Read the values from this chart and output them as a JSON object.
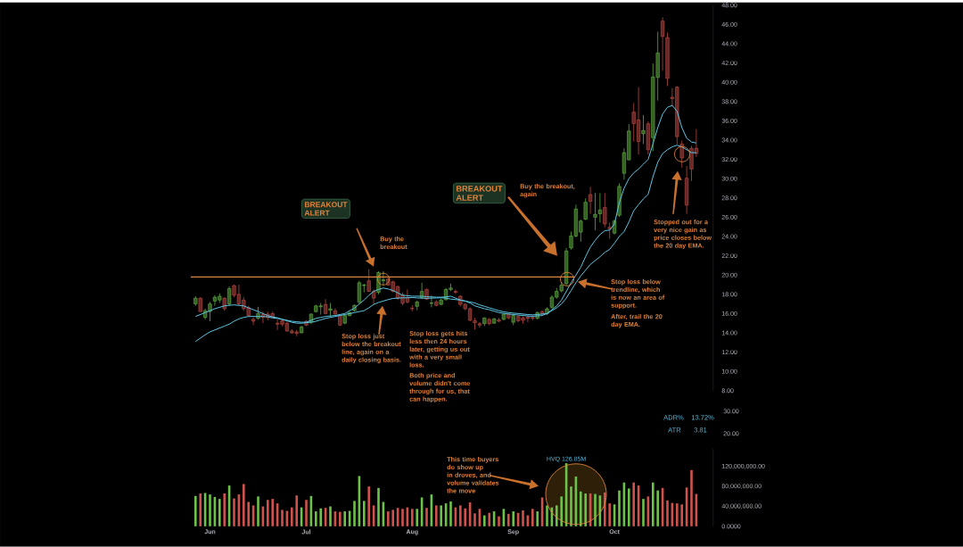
{
  "chart_data": [
    {
      "type": "candlestick",
      "tick_labels": "y",
      "ylim": [
        8,
        48
      ],
      "yticks": [
        {
          "value": 8,
          "label": "8.00"
        },
        {
          "value": 10,
          "label": "10.00"
        },
        {
          "value": 12,
          "label": "12.00"
        },
        {
          "value": 14,
          "label": "14.00"
        },
        {
          "value": 16,
          "label": "16.00"
        },
        {
          "value": 18,
          "label": "18.00"
        },
        {
          "value": 20,
          "label": "20.00"
        },
        {
          "value": 22,
          "label": "22.00"
        },
        {
          "value": 24,
          "label": "24.00"
        },
        {
          "value": 26,
          "label": "26.00"
        },
        {
          "value": 28,
          "label": "28.00"
        },
        {
          "value": 30,
          "label": "30.00"
        },
        {
          "value": 32,
          "label": "32.00"
        },
        {
          "value": 34,
          "label": "34.00"
        },
        {
          "value": 36,
          "label": "36.00"
        },
        {
          "value": 38,
          "label": "38.00"
        },
        {
          "value": 40,
          "label": "40.00"
        },
        {
          "value": 42,
          "label": "42.00"
        },
        {
          "value": 44,
          "label": "44.00"
        },
        {
          "value": 46,
          "label": "46.00"
        },
        {
          "value": 48,
          "label": "48.00"
        }
      ],
      "series": [
        {
          "type": "candlestick",
          "ohlc": [
            [
              17.0,
              17.8,
              16.8,
              17.6
            ],
            [
              17.6,
              17.7,
              16.2,
              16.2
            ],
            [
              15.6,
              16.5,
              15.4,
              16.3
            ],
            [
              16.2,
              17.2,
              15.2,
              17.0
            ],
            [
              17.3,
              17.9,
              16.8,
              17.7
            ],
            [
              17.4,
              18.1,
              17.1,
              17.8
            ],
            [
              17.6,
              17.7,
              16.3,
              16.5
            ],
            [
              17.0,
              18.8,
              16.8,
              18.6
            ],
            [
              18.9,
              19.0,
              17.7,
              17.9
            ],
            [
              18.0,
              19.0,
              16.8,
              17.0
            ],
            [
              17.4,
              17.7,
              16.3,
              16.5
            ],
            [
              16.6,
              16.8,
              15.7,
              15.8
            ],
            [
              15.4,
              15.6,
              14.8,
              15.2
            ],
            [
              15.5,
              16.7,
              15.4,
              16.0
            ],
            [
              15.9,
              16.2,
              15.0,
              15.6
            ],
            [
              15.95,
              16.2,
              15.3,
              15.6
            ],
            [
              16.0,
              16.2,
              15.6,
              15.6
            ],
            [
              15.0,
              15.4,
              14.3,
              14.9
            ],
            [
              15.25,
              15.4,
              14.7,
              14.9
            ],
            [
              15.0,
              15.2,
              14.1,
              14.2
            ],
            [
              14.2,
              14.4,
              13.9,
              14.0
            ],
            [
              14.1,
              14.3,
              13.65,
              13.95
            ],
            [
              14.0,
              14.75,
              13.95,
              14.6
            ],
            [
              15.2,
              15.3,
              14.7,
              14.8
            ],
            [
              15.1,
              16.0,
              14.9,
              15.95
            ],
            [
              16.2,
              16.9,
              16.1,
              16.8
            ],
            [
              16.7,
              17.1,
              15.9,
              16.8
            ],
            [
              16.95,
              17.5,
              15.9,
              16.0
            ],
            [
              16.35,
              17.1,
              15.7,
              16.5
            ],
            [
              16.3,
              16.55,
              15.9,
              15.95
            ],
            [
              15.8,
              15.9,
              14.7,
              14.8
            ],
            [
              15.0,
              15.9,
              14.9,
              15.8
            ],
            [
              15.8,
              16.2,
              15.7,
              16.1
            ],
            [
              16.3,
              16.95,
              16.2,
              16.85
            ],
            [
              17.2,
              19.4,
              17.0,
              19.2
            ],
            [
              18.9,
              19.1,
              18.2,
              18.95
            ],
            [
              19.4,
              20.6,
              18.3,
              18.3
            ],
            [
              18.3,
              18.5,
              16.95,
              17.6
            ],
            [
              18.2,
              20.4,
              18.0,
              20.25
            ],
            [
              19.4,
              20.4,
              18.95,
              19.5
            ],
            [
              19.6,
              19.7,
              18.9,
              18.95
            ],
            [
              19.3,
              19.4,
              18.2,
              18.3
            ],
            [
              18.8,
              18.9,
              17.4,
              17.6
            ],
            [
              17.95,
              18.2,
              16.85,
              17.05
            ],
            [
              17.65,
              18.5,
              17.05,
              17.2
            ],
            [
              16.55,
              16.85,
              16.25,
              16.5
            ],
            [
              16.75,
              17.35,
              16.35,
              17.2
            ],
            [
              17.65,
              19.2,
              17.55,
              18.3
            ],
            [
              18.5,
              18.6,
              17.4,
              17.5
            ],
            [
              17.05,
              17.9,
              16.65,
              17.1
            ],
            [
              17.2,
              17.4,
              16.75,
              16.85
            ],
            [
              16.95,
              17.55,
              16.85,
              17.4
            ],
            [
              17.45,
              18.65,
              17.35,
              18.5
            ],
            [
              18.5,
              19.1,
              18.35,
              18.65
            ],
            [
              18.3,
              18.5,
              18.05,
              18.2
            ],
            [
              17.8,
              17.9,
              16.75,
              16.95
            ],
            [
              16.95,
              17.1,
              16.35,
              16.5
            ],
            [
              16.5,
              16.65,
              15.2,
              15.3
            ],
            [
              15.25,
              15.55,
              14.35,
              15.05
            ],
            [
              14.95,
              15.1,
              14.55,
              14.8
            ],
            [
              14.95,
              15.6,
              14.7,
              15.55
            ],
            [
              15.4,
              15.55,
              14.8,
              14.95
            ],
            [
              15.0,
              15.55,
              14.95,
              15.45
            ],
            [
              15.35,
              15.55,
              15.1,
              15.2
            ],
            [
              15.4,
              16.0,
              15.3,
              15.95
            ],
            [
              15.95,
              16.0,
              15.4,
              15.55
            ],
            [
              15.1,
              16.0,
              14.8,
              15.8
            ],
            [
              15.7,
              15.85,
              15.1,
              15.25
            ],
            [
              15.55,
              15.7,
              14.95,
              15.3
            ],
            [
              15.65,
              15.8,
              15.1,
              15.5
            ],
            [
              15.6,
              15.85,
              15.3,
              15.5
            ],
            [
              15.5,
              16.2,
              15.4,
              16.1
            ],
            [
              16.2,
              16.35,
              15.85,
              16.0
            ],
            [
              16.0,
              16.65,
              15.85,
              16.5
            ],
            [
              16.65,
              17.9,
              16.5,
              17.7
            ],
            [
              17.7,
              18.65,
              17.55,
              18.3
            ],
            [
              18.35,
              19.25,
              18.2,
              18.95
            ],
            [
              19.1,
              22.8,
              18.95,
              22.5
            ],
            [
              22.8,
              24.5,
              22.65,
              24.05
            ],
            [
              24.05,
              27.3,
              23.9,
              26.85
            ],
            [
              24.45,
              25.75,
              23.45,
              25.6
            ],
            [
              25.8,
              27.95,
              25.7,
              27.55
            ],
            [
              28.35,
              29.15,
              26.35,
              27.65
            ],
            [
              26.0,
              28.5,
              24.65,
              26.3
            ],
            [
              26.35,
              28.5,
              25.45,
              26.75
            ],
            [
              27.0,
              28.5,
              24.95,
              25.3
            ],
            [
              24.95,
              25.45,
              23.75,
              24.8
            ],
            [
              24.35,
              25.75,
              24.2,
              25.6
            ],
            [
              26.2,
              29.5,
              26.05,
              29.2
            ],
            [
              30.55,
              33.15,
              29.9,
              32.7
            ],
            [
              31.95,
              35.65,
              31.9,
              34.95
            ],
            [
              36.9,
              37.85,
              33.85,
              35.7
            ],
            [
              36.1,
              39.5,
              32.5,
              33.85
            ],
            [
              34.65,
              36.6,
              33.6,
              35.0
            ],
            [
              35.7,
              35.95,
              32.5,
              33.0
            ],
            [
              34.25,
              41.95,
              32.85,
              40.55
            ],
            [
              40.5,
              45.25,
              38.1,
              43.05
            ],
            [
              46.35,
              46.75,
              41.2,
              44.75
            ],
            [
              44.65,
              45.15,
              39.6,
              40.4
            ],
            [
              38.45,
              39.4,
              37.5,
              38.3
            ],
            [
              39.5,
              39.6,
              33.55,
              34.35
            ],
            [
              33.6,
              33.95,
              31.15,
              32.15
            ],
            [
              30.05,
              31.3,
              26.35,
              27.25
            ],
            [
              33.15,
              33.4,
              29.75,
              31.0
            ],
            [
              33.15,
              35.15,
              32.25,
              32.6
            ]
          ],
          "colors": [
            "#6cc24a",
            "#d0524c",
            "#6cc24a",
            "#6cc24a",
            "#6cc24a",
            "#6cc24a",
            "#d0524c",
            "#6cc24a",
            "#d0524c",
            "#d0524c",
            "#d0524c",
            "#d0524c",
            "#d0524c",
            "#6cc24a",
            "#d0524c",
            "#d0524c",
            "#d0524c",
            "#d0524c",
            "#d0524c",
            "#d0524c",
            "#d0524c",
            "#d0524c",
            "#6cc24a",
            "#d0524c",
            "#6cc24a",
            "#6cc24a",
            "#6cc24a",
            "#d0524c",
            "#6cc24a",
            "#d0524c",
            "#d0524c",
            "#6cc24a",
            "#6cc24a",
            "#6cc24a",
            "#6cc24a",
            "#6cc24a",
            "#d0524c",
            "#d0524c",
            "#6cc24a",
            "#6cc24a",
            "#d0524c",
            "#d0524c",
            "#d0524c",
            "#d0524c",
            "#d0524c",
            "#d0524c",
            "#6cc24a",
            "#6cc24a",
            "#d0524c",
            "#6cc24a",
            "#d0524c",
            "#6cc24a",
            "#6cc24a",
            "#6cc24a",
            "#d0524c",
            "#d0524c",
            "#d0524c",
            "#d0524c",
            "#d0524c",
            "#d0524c",
            "#6cc24a",
            "#d0524c",
            "#6cc24a",
            "#d0524c",
            "#6cc24a",
            "#d0524c",
            "#6cc24a",
            "#d0524c",
            "#d0524c",
            "#d0524c",
            "#d0524c",
            "#6cc24a",
            "#d0524c",
            "#6cc24a",
            "#6cc24a",
            "#6cc24a",
            "#6cc24a",
            "#6cc24a",
            "#6cc24a",
            "#6cc24a",
            "#6cc24a",
            "#6cc24a",
            "#d0524c",
            "#6cc24a",
            "#6cc24a",
            "#d0524c",
            "#d0524c",
            "#6cc24a",
            "#6cc24a",
            "#6cc24a",
            "#6cc24a",
            "#d0524c",
            "#d0524c",
            "#6cc24a",
            "#d0524c",
            "#6cc24a",
            "#6cc24a",
            "#d0524c",
            "#d0524c",
            "#d0524c",
            "#d0524c",
            "#d0524c",
            "#d0524c",
            "#d0524c",
            "#d0524c"
          ]
        },
        {
          "type": "line",
          "color": "#5cc6e4",
          "values": [
            15.7,
            15.9,
            16.1,
            16.3,
            16.5,
            16.65,
            16.8,
            16.86,
            16.9,
            16.85,
            16.8,
            16.6,
            16.4,
            16.2,
            16.0,
            15.8,
            15.65,
            15.56,
            15.4,
            15.3,
            15.2,
            15.15,
            15.1,
            15.1,
            15.3,
            15.5,
            15.6,
            15.7,
            15.75,
            15.8,
            15.9,
            16.0,
            16.3,
            16.55,
            17.0,
            17.4,
            17.9,
            18.3,
            18.5,
            18.65,
            18.55,
            18.4,
            18.15,
            17.9,
            17.85,
            17.8,
            17.8,
            17.8,
            17.75,
            17.72,
            17.7,
            17.7,
            17.72,
            17.8,
            17.6,
            17.4,
            17.3,
            17.2,
            17.1,
            16.9,
            16.75,
            16.6,
            16.45,
            16.3,
            16.18,
            16.1,
            16.05,
            16.0,
            15.95,
            15.9,
            15.87,
            15.9,
            15.95,
            16.0,
            16.4,
            16.8,
            17.4,
            18.3,
            19.2,
            20.0,
            20.8,
            21.9,
            22.9,
            23.6,
            24.2,
            24.6,
            24.66,
            25.3,
            27.5,
            29.0,
            30.0,
            30.6,
            31.0,
            31.5,
            32.0,
            33.6,
            35.3,
            36.7,
            37.4,
            37.6,
            37.0,
            35.3,
            34.2,
            33.8,
            33.7
          ]
        },
        {
          "type": "line",
          "color": "#5cc6e4",
          "values": [
            13.1,
            13.45,
            13.8,
            14.1,
            14.3,
            14.5,
            14.7,
            14.9,
            15.2,
            15.45,
            15.6,
            15.7,
            15.7,
            15.7,
            15.7,
            15.65,
            15.55,
            15.5,
            15.4,
            15.25,
            15.1,
            15.0,
            15.0,
            15.05,
            15.1,
            15.2,
            15.35,
            15.5,
            15.6,
            15.7,
            15.8,
            15.9,
            16.0,
            16.1,
            16.2,
            16.3,
            16.6,
            16.95,
            17.15,
            17.3,
            17.45,
            17.57,
            17.6,
            17.63,
            17.65,
            17.66,
            17.62,
            17.6,
            17.57,
            17.6,
            17.62,
            17.64,
            17.6,
            17.5,
            17.45,
            17.4,
            17.3,
            17.1,
            16.8,
            16.65,
            16.5,
            16.4,
            16.25,
            16.1,
            16.02,
            15.95,
            15.9,
            15.85,
            15.8,
            15.75,
            15.72,
            15.75,
            15.8,
            16.0,
            16.3,
            16.6,
            17.0,
            17.6,
            18.4,
            19.2,
            19.9,
            20.5,
            21.1,
            21.5,
            21.9,
            22.35,
            22.66,
            23.3,
            24.0,
            24.5,
            25.5,
            26.67,
            27.3,
            27.9,
            28.37,
            30.2,
            31.7,
            32.6,
            33.0,
            33.3,
            33.47,
            33.3,
            33.0,
            32.7,
            32.69
          ]
        }
      ],
      "ref_lines": [
        {
          "axis": "y",
          "value": 19.8,
          "color": "#e0843a"
        }
      ],
      "annotations": [
        "BREAKOUT ALERT",
        "BREAKOUT ALERT",
        "Buy the breakout",
        "Stop loss just below the breakout line, again on a daily closing basis.",
        "Stop loss gets hits less then 24 hours later, getting us out with a very small loss.",
        "Both price and volume didn't come through for us, that can happen.",
        "Buy the breakout, again",
        "Stop loss below trendline, which is now an area of support.",
        "After, trail the 20 day EMA.",
        "Stopped out for a very nice gain as price closes below the 20 day EMA."
      ]
    },
    {
      "type": "other",
      "annotations": [
        "30.00",
        "20.00",
        "ADR%",
        "13.72%",
        "ATR",
        "3.81"
      ]
    },
    {
      "type": "bar",
      "ylim": [
        0,
        156000000
      ],
      "yticks": [
        {
          "value": 0,
          "label": "0.0000"
        },
        {
          "value": 40000000,
          "label": "40,000,000.00"
        },
        {
          "value": 80000000,
          "label": "80,000,000.00"
        },
        {
          "value": 120000000,
          "label": "120,000,000.00"
        }
      ],
      "categories": [
        null,
        null,
        null,
        "Jun",
        null,
        null,
        null,
        null,
        null,
        null,
        null,
        null,
        null,
        null,
        null,
        null,
        null,
        null,
        null,
        null,
        null,
        null,
        null,
        "Jul",
        null,
        null,
        null,
        null,
        null,
        null,
        null,
        null,
        null,
        null,
        null,
        null,
        null,
        null,
        null,
        null,
        null,
        null,
        null,
        null,
        null,
        "Aug",
        null,
        null,
        null,
        null,
        null,
        null,
        null,
        null,
        null,
        null,
        null,
        null,
        null,
        null,
        null,
        null,
        null,
        null,
        null,
        null,
        "Sep",
        null,
        null,
        null,
        null,
        null,
        null,
        null,
        null,
        null,
        null,
        null,
        null,
        null,
        null,
        null,
        null,
        null,
        null,
        null,
        null,
        "Oct",
        null,
        null,
        null,
        null,
        null,
        null,
        null,
        null,
        null,
        null,
        null,
        null,
        null,
        null,
        null,
        null,
        null
      ],
      "values": [
        61000000,
        66000000,
        67000000,
        64000000,
        59000000,
        55000000,
        66000000,
        82000000,
        56000000,
        64000000,
        85000000,
        49000000,
        42000000,
        60000000,
        40000000,
        53000000,
        55000000,
        46000000,
        33000000,
        31000000,
        38000000,
        62000000,
        38000000,
        53000000,
        61000000,
        30000000,
        36000000,
        37000000,
        40000000,
        30000000,
        29000000,
        30000000,
        31000000,
        51000000,
        101000000,
        51000000,
        80000000,
        42000000,
        77000000,
        49000000,
        30000000,
        33000000,
        37000000,
        35000000,
        38000000,
        35000000,
        35000000,
        58000000,
        37000000,
        64000000,
        42000000,
        42000000,
        46000000,
        50000000,
        38000000,
        42000000,
        36000000,
        48000000,
        26000000,
        35000000,
        22000000,
        27000000,
        30000000,
        20000000,
        35000000,
        25000000,
        30000000,
        27000000,
        32000000,
        22000000,
        35000000,
        30000000,
        58000000,
        42000000,
        38000000,
        42000000,
        60000000,
        126850000,
        80000000,
        100000000,
        70000000,
        66000000,
        66000000,
        65000000,
        62000000,
        68000000,
        46000000,
        44000000,
        72000000,
        88000000,
        76000000,
        88000000,
        82000000,
        55000000,
        60000000,
        88000000,
        72000000,
        77000000,
        52000000,
        47000000,
        46000000,
        44000000,
        78000000,
        113000000,
        65000000
      ],
      "colors": [
        "#6cc24a",
        "#d0524c",
        "#6cc24a",
        "#6cc24a",
        "#6cc24a",
        "#6cc24a",
        "#d0524c",
        "#6cc24a",
        "#d0524c",
        "#d0524c",
        "#d0524c",
        "#d0524c",
        "#d0524c",
        "#6cc24a",
        "#d0524c",
        "#d0524c",
        "#d0524c",
        "#d0524c",
        "#d0524c",
        "#d0524c",
        "#d0524c",
        "#d0524c",
        "#6cc24a",
        "#d0524c",
        "#6cc24a",
        "#6cc24a",
        "#6cc24a",
        "#d0524c",
        "#6cc24a",
        "#d0524c",
        "#d0524c",
        "#6cc24a",
        "#6cc24a",
        "#6cc24a",
        "#6cc24a",
        "#6cc24a",
        "#d0524c",
        "#d0524c",
        "#6cc24a",
        "#6cc24a",
        "#d0524c",
        "#d0524c",
        "#d0524c",
        "#d0524c",
        "#d0524c",
        "#d0524c",
        "#6cc24a",
        "#6cc24a",
        "#d0524c",
        "#6cc24a",
        "#d0524c",
        "#6cc24a",
        "#6cc24a",
        "#6cc24a",
        "#d0524c",
        "#d0524c",
        "#d0524c",
        "#d0524c",
        "#d0524c",
        "#d0524c",
        "#6cc24a",
        "#d0524c",
        "#6cc24a",
        "#d0524c",
        "#6cc24a",
        "#d0524c",
        "#6cc24a",
        "#d0524c",
        "#d0524c",
        "#d0524c",
        "#d0524c",
        "#6cc24a",
        "#d0524c",
        "#6cc24a",
        "#6cc24a",
        "#6cc24a",
        "#6cc24a",
        "#6cc24a",
        "#6cc24a",
        "#6cc24a",
        "#6cc24a",
        "#6cc24a",
        "#d0524c",
        "#6cc24a",
        "#6cc24a",
        "#d0524c",
        "#d0524c",
        "#6cc24a",
        "#6cc24a",
        "#6cc24a",
        "#6cc24a",
        "#d0524c",
        "#d0524c",
        "#6cc24a",
        "#d0524c",
        "#6cc24a",
        "#6cc24a",
        "#d0524c",
        "#d0524c",
        "#d0524c",
        "#d0524c",
        "#d0524c",
        "#d0524c",
        "#d0524c",
        "#d0524c"
      ],
      "annotations": [
        "This time buyers do show up in droves, and volume validates the move",
        {
          "text": "HVQ 126.85M",
          "y": 126850000
        }
      ]
    }
  ]
}
